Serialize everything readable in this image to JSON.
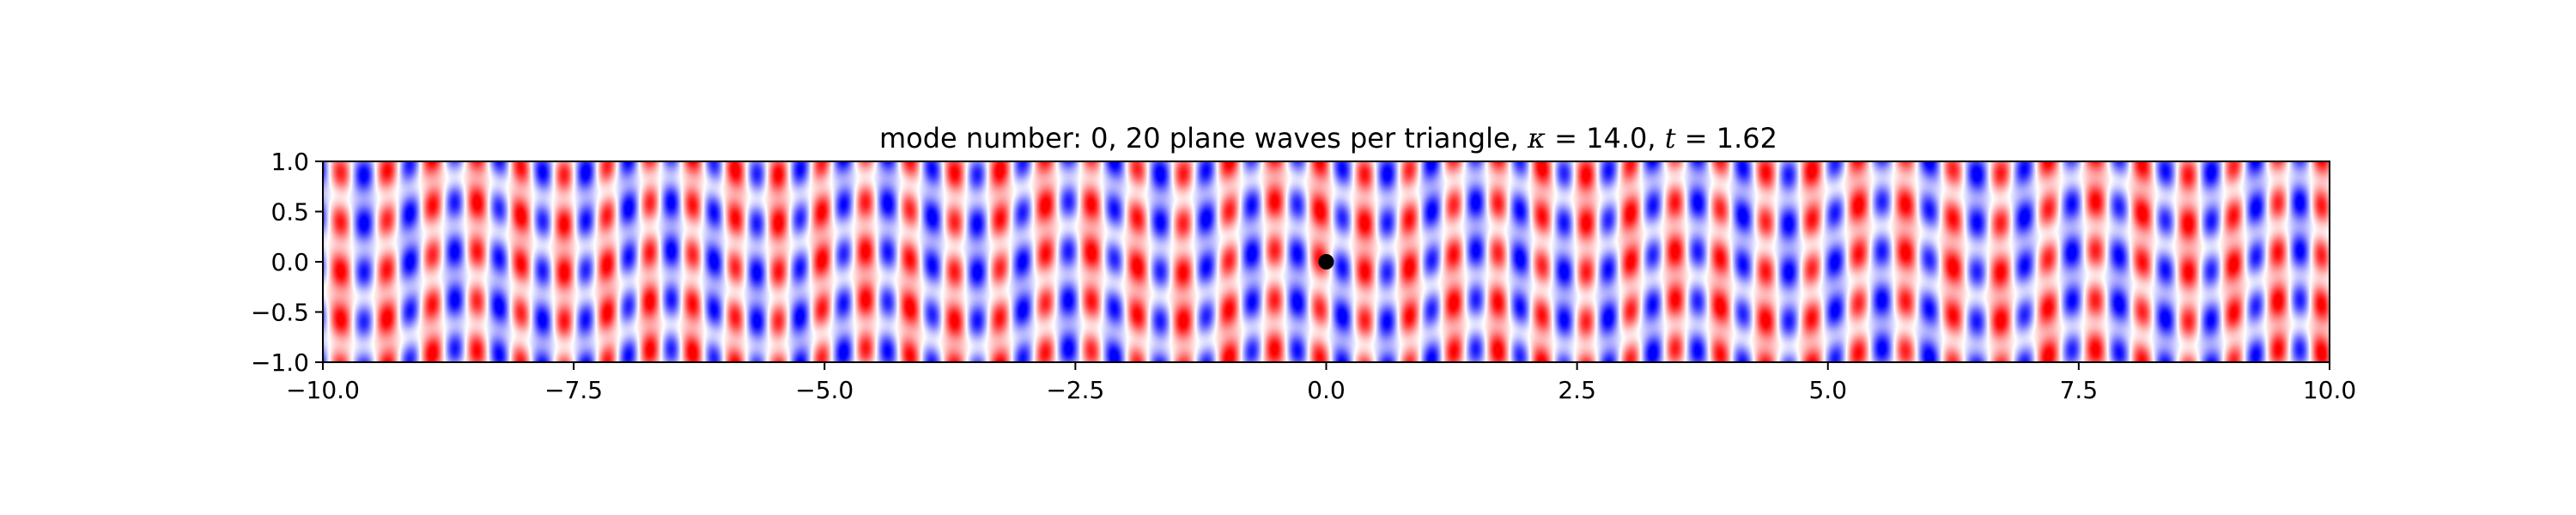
{
  "chart_data": {
    "type": "heatmap",
    "title": "mode number: 0, 20 plane waves per triangle, κ = 14.0, t = 1.62",
    "title_parts": {
      "prefix": "mode number: 0, 20 plane waves per triangle, ",
      "kappa_symbol": "κ",
      "kappa_value": " = 14.0, ",
      "t_symbol": "t",
      "t_value": " = 1.62"
    },
    "xlabel": "",
    "ylabel": "",
    "xlim": [
      -10.0,
      10.0
    ],
    "ylim": [
      -1.0,
      1.0
    ],
    "x_ticks": [
      -10.0,
      -7.5,
      -5.0,
      -2.5,
      0.0,
      2.5,
      5.0,
      7.5,
      10.0
    ],
    "x_tick_labels": [
      "−10.0",
      "−7.5",
      "−5.0",
      "−2.5",
      "0.0",
      "2.5",
      "5.0",
      "7.5",
      "10.0"
    ],
    "y_ticks": [
      1.0,
      0.5,
      0.0,
      -0.5,
      -1.0
    ],
    "y_tick_labels": [
      "1.0",
      "0.5",
      "0.0",
      "−0.5",
      "−1.0"
    ],
    "colormap": "bwr",
    "colors": {
      "negative": "#0000ff",
      "zero": "#ffffff",
      "positive": "#ff0000"
    },
    "field": {
      "wavenumber_kappa": 14.0,
      "time": 1.62
    },
    "source_marker": {
      "x": 0.0,
      "y": 0.0,
      "color": "#000000"
    },
    "grid": false
  }
}
